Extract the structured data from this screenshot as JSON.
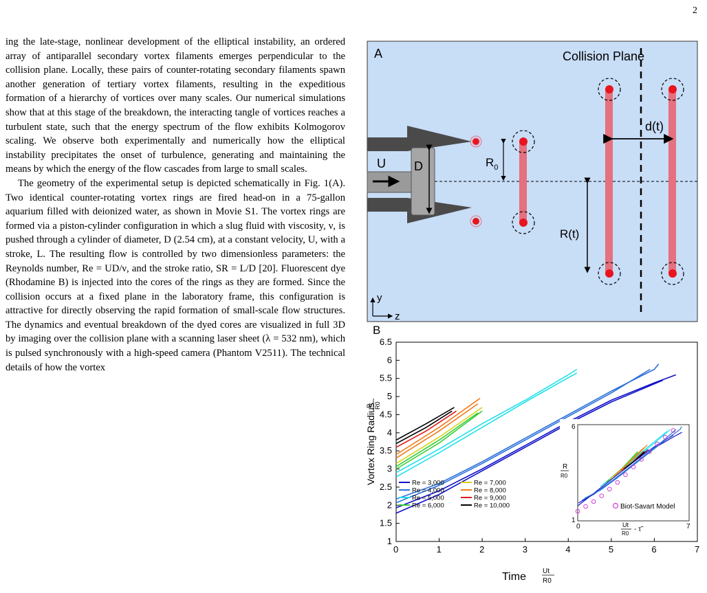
{
  "page_number": "2",
  "paragraphs": [
    "ing the late-stage, nonlinear development of the elliptical instability, an ordered array of antiparallel secondary vortex filaments emerges perpendicular to the collision plane. Locally, these pairs of counter-rotating secondary filaments spawn another generation of tertiary vortex filaments, resulting in the expeditious formation of a hierarchy of vortices over many scales. Our numerical simulations show that at this stage of the breakdown, the interacting tangle of vortices reaches a turbulent state, such that the energy spectrum of the flow exhibits Kolmogorov scaling. We observe both experimentally and numerically how the elliptical instability precipitates the onset of turbulence, generating and maintaining the means by which the energy of the flow cascades from large to small scales.",
    "The geometry of the experimental setup is depicted schematically in Fig. 1(A). Two identical counter-rotating vortex rings are fired head-on in a 75-gallon aquarium filled with deionized water, as shown in Movie S1. The vortex rings are formed via a piston-cylinder configuration in which a slug fluid with viscosity, ν, is pushed through a cylinder of diameter, D (2.54 cm), at a constant velocity, U, with a stroke, L. The resulting flow is controlled by two dimensionless parameters: the Reynolds number, Re = UD/ν, and the stroke ratio, SR = L/D [20]. Fluorescent dye (Rhodamine B) is injected into the cores of the rings as they are formed. Since the collision occurs at a fixed plane in the laboratory frame, this configuration is attractive for directly observing the rapid formation of small-scale flow structures. The dynamics and eventual breakdown of the dyed cores are visualized in full 3D by imaging over the collision plane with a scanning laser sheet (λ = 532 nm), which is pulsed synchronously with a high-speed camera (Phantom V2511). The technical details of how the vortex"
  ],
  "panel_a": {
    "label": "A",
    "collision_plane": "Collision Plane",
    "u": "U",
    "d": "D",
    "r0": "R",
    "r0_sub": "0",
    "rt": "R(t)",
    "dt": "d(t)",
    "axis_y": "y",
    "axis_z": "z",
    "colors": {
      "background": "#c8ddf6",
      "ring": "#e5707e",
      "core": "#e8141e",
      "nozzle": "#4a4a4a"
    }
  },
  "panel_b": {
    "label": "B",
    "xlabel": "Time",
    "xlabel_frac_num": "Ut",
    "xlabel_frac_den": "R0",
    "ylabel": "Vortex Ring Radius",
    "ylabel_frac_num": "R",
    "ylabel_frac_den": "R0",
    "inset_model_label": "Biot-Savart Model",
    "inset_ylabel_num": "R",
    "inset_ylabel_den": "R0",
    "inset_xlabel_num": "Ut",
    "inset_xlabel_den": "R0",
    "inset_xlabel_suffix": "- τ̃"
  },
  "chart_data": [
    {
      "type": "line",
      "xlabel": "Time (Ut/R0)",
      "ylabel": "Vortex Ring Radius (R/R0)",
      "xlim": [
        0,
        7
      ],
      "ylim": [
        1,
        6.5
      ],
      "xticks": [
        "0",
        "1",
        "2",
        "3",
        "4",
        "5",
        "6",
        "7"
      ],
      "yticks": [
        "1",
        "1.5",
        "2",
        "2.5",
        "3",
        "3.5",
        "4",
        "4.5",
        "5",
        "5.5",
        "6",
        "6.5"
      ],
      "legend_position": "bottom-left",
      "series": [
        {
          "name": "Re = 3,000",
          "color": "#1010c8",
          "runs": [
            [
              [
                0,
                1.93
              ],
              [
                1,
                2.4
              ],
              [
                2,
                3.0
              ],
              [
                3,
                3.65
              ],
              [
                4,
                4.3
              ],
              [
                5,
                4.9
              ],
              [
                6,
                5.38
              ],
              [
                6.5,
                5.6
              ]
            ],
            [
              [
                0,
                1.78
              ],
              [
                1,
                2.3
              ],
              [
                2,
                2.95
              ],
              [
                3,
                3.6
              ],
              [
                4,
                4.25
              ],
              [
                5,
                4.85
              ],
              [
                6,
                5.35
              ],
              [
                6.2,
                5.45
              ]
            ]
          ]
        },
        {
          "name": "Re = 4,000",
          "color": "#2a70d8",
          "runs": [
            [
              [
                0,
                2.17
              ],
              [
                1,
                2.6
              ],
              [
                2,
                3.2
              ],
              [
                3,
                3.85
              ],
              [
                4,
                4.5
              ],
              [
                5,
                5.15
              ],
              [
                6,
                5.75
              ],
              [
                6.1,
                5.9
              ]
            ],
            [
              [
                0,
                2.07
              ],
              [
                1,
                2.55
              ],
              [
                2,
                3.15
              ],
              [
                3,
                3.8
              ],
              [
                4,
                4.45
              ],
              [
                5,
                5.1
              ],
              [
                5.9,
                5.75
              ]
            ]
          ]
        },
        {
          "name": "Re = 5,000",
          "color": "#20e0ea",
          "runs": [
            [
              [
                0,
                2.9
              ],
              [
                1,
                3.55
              ],
              [
                2,
                4.25
              ],
              [
                3,
                4.9
              ],
              [
                4,
                5.6
              ],
              [
                4.2,
                5.75
              ]
            ],
            [
              [
                0,
                2.78
              ],
              [
                1,
                3.45
              ],
              [
                2,
                4.15
              ],
              [
                3,
                4.85
              ],
              [
                4,
                5.52
              ],
              [
                4.2,
                5.65
              ]
            ]
          ]
        },
        {
          "name": "Re = 6,000",
          "color": "#38cc38",
          "runs": [
            [
              [
                0,
                3.07
              ],
              [
                1,
                3.8
              ],
              [
                1.9,
                4.55
              ]
            ],
            [
              [
                0,
                3.0
              ],
              [
                1,
                3.72
              ],
              [
                2,
                4.6
              ]
            ]
          ]
        },
        {
          "name": "Re = 7,000",
          "color": "#d8d018",
          "runs": [
            [
              [
                0,
                3.15
              ],
              [
                1,
                3.88
              ],
              [
                2,
                4.7
              ]
            ]
          ]
        },
        {
          "name": "Re = 8,000",
          "color": "#f07a18",
          "runs": [
            [
              [
                0,
                3.4
              ],
              [
                1,
                4.15
              ],
              [
                1.95,
                4.95
              ]
            ],
            [
              [
                0,
                3.3
              ],
              [
                1,
                4.05
              ],
              [
                1.9,
                4.8
              ]
            ]
          ]
        },
        {
          "name": "Re = 9,000",
          "color": "#e01818",
          "runs": [
            [
              [
                0,
                3.6
              ],
              [
                0.7,
                4.05
              ],
              [
                1.4,
                4.6
              ]
            ]
          ]
        },
        {
          "name": "Re = 10,000",
          "color": "#000000",
          "runs": [
            [
              [
                0,
                3.8
              ],
              [
                0.7,
                4.25
              ],
              [
                1.35,
                4.7
              ]
            ],
            [
              [
                0,
                3.7
              ],
              [
                0.7,
                4.15
              ],
              [
                1.3,
                4.6
              ]
            ]
          ]
        }
      ]
    },
    {
      "type": "scatter",
      "note": "inset",
      "xlim": [
        0,
        7
      ],
      "ylim": [
        1,
        6
      ],
      "xticks": [
        "0",
        "7"
      ],
      "yticks": [
        "1",
        "6"
      ],
      "series": [
        {
          "name": "Biot-Savart Model",
          "color": "#d040d8",
          "x": [
            0,
            0.5,
            1,
            1.5,
            2,
            2.5,
            3,
            3.5,
            4,
            4.5,
            5,
            5.5,
            6
          ],
          "y": [
            1.5,
            1.75,
            2.0,
            2.3,
            2.65,
            3.0,
            3.4,
            3.8,
            4.2,
            4.6,
            5.0,
            5.35,
            5.7
          ]
        }
      ]
    }
  ]
}
